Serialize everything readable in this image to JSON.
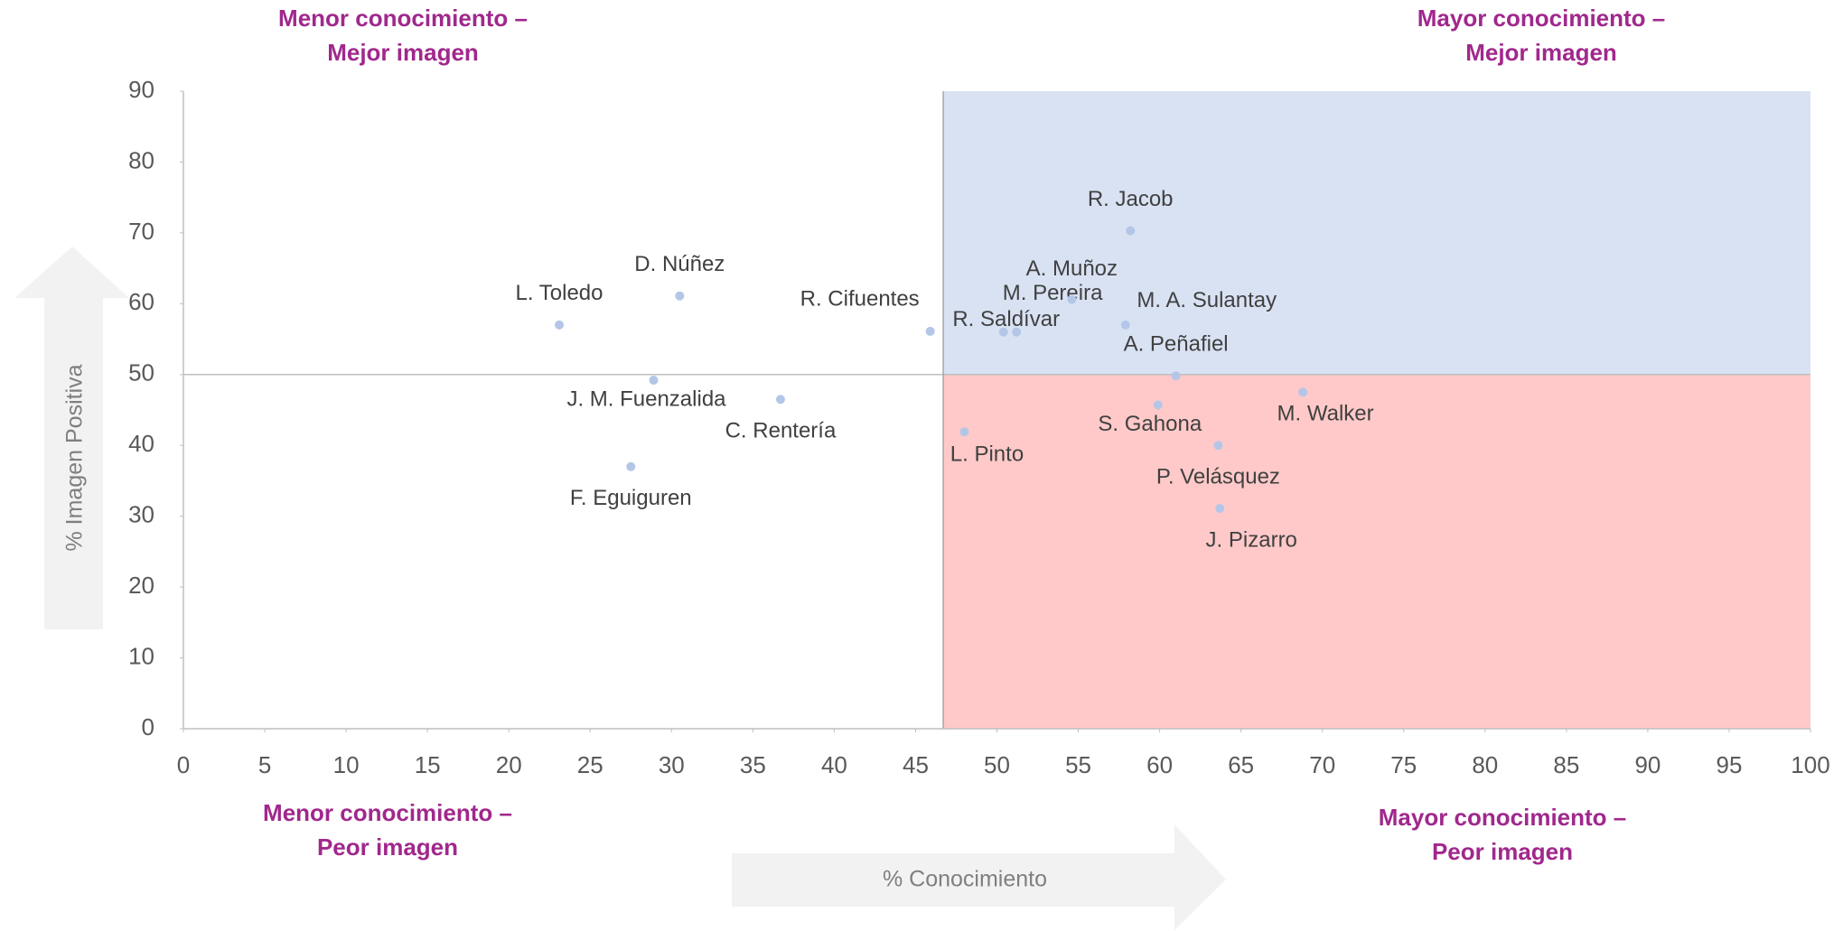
{
  "chart_data": {
    "type": "scatter",
    "x_label": "% Conocimiento",
    "y_label": "% Imagen Positiva",
    "xlim": [
      0,
      100
    ],
    "xticks": [
      0,
      5,
      10,
      15,
      20,
      25,
      30,
      35,
      40,
      45,
      50,
      55,
      60,
      65,
      70,
      75,
      80,
      85,
      90,
      95,
      100
    ],
    "ylim": [
      0,
      90
    ],
    "yticks": [
      0,
      10,
      20,
      30,
      40,
      50,
      60,
      70,
      80,
      90
    ],
    "x_split": 46.7,
    "y_split": 50,
    "quadrants": {
      "top_left": [
        "Menor conocimiento –",
        "Mejor imagen"
      ],
      "top_right": [
        "Mayor conocimiento –",
        "Mejor imagen"
      ],
      "bottom_left": [
        "Menor conocimiento –",
        "Peor imagen"
      ],
      "bottom_right": [
        "Mayor conocimiento –",
        "Peor imagen"
      ]
    },
    "quadrant_colors": {
      "top_right": "#d9e2f3",
      "bottom_right": "#ffc9c9"
    },
    "series": [
      {
        "color": "#b4c6e7",
        "labels": [
          "L. Toledo",
          "D. Núñez",
          "J. M. Fuenzalida",
          "C. Rentería",
          "F. Eguiguren",
          "R. Cifuentes",
          "R. Saldívar",
          "M. Pereira",
          "A. Muñoz",
          "R. Jacob",
          "M. A. Sulantay",
          "A. Peñafiel",
          "S. Gahona",
          "P. Velásquez",
          "J. Pizarro",
          "M. Walker",
          "L. Pinto"
        ],
        "x": [
          23.1,
          30.5,
          28.9,
          36.7,
          27.5,
          45.9,
          50.4,
          51.2,
          54.6,
          58.2,
          57.9,
          61.0,
          59.9,
          63.6,
          63.7,
          68.8,
          48.0
        ],
        "values": [
          57.0,
          61.1,
          49.2,
          46.5,
          37.0,
          56.1,
          56.0,
          56.0,
          60.6,
          70.3,
          57.0,
          49.8,
          45.7,
          40.0,
          31.1,
          47.5,
          41.9
        ]
      }
    ]
  }
}
